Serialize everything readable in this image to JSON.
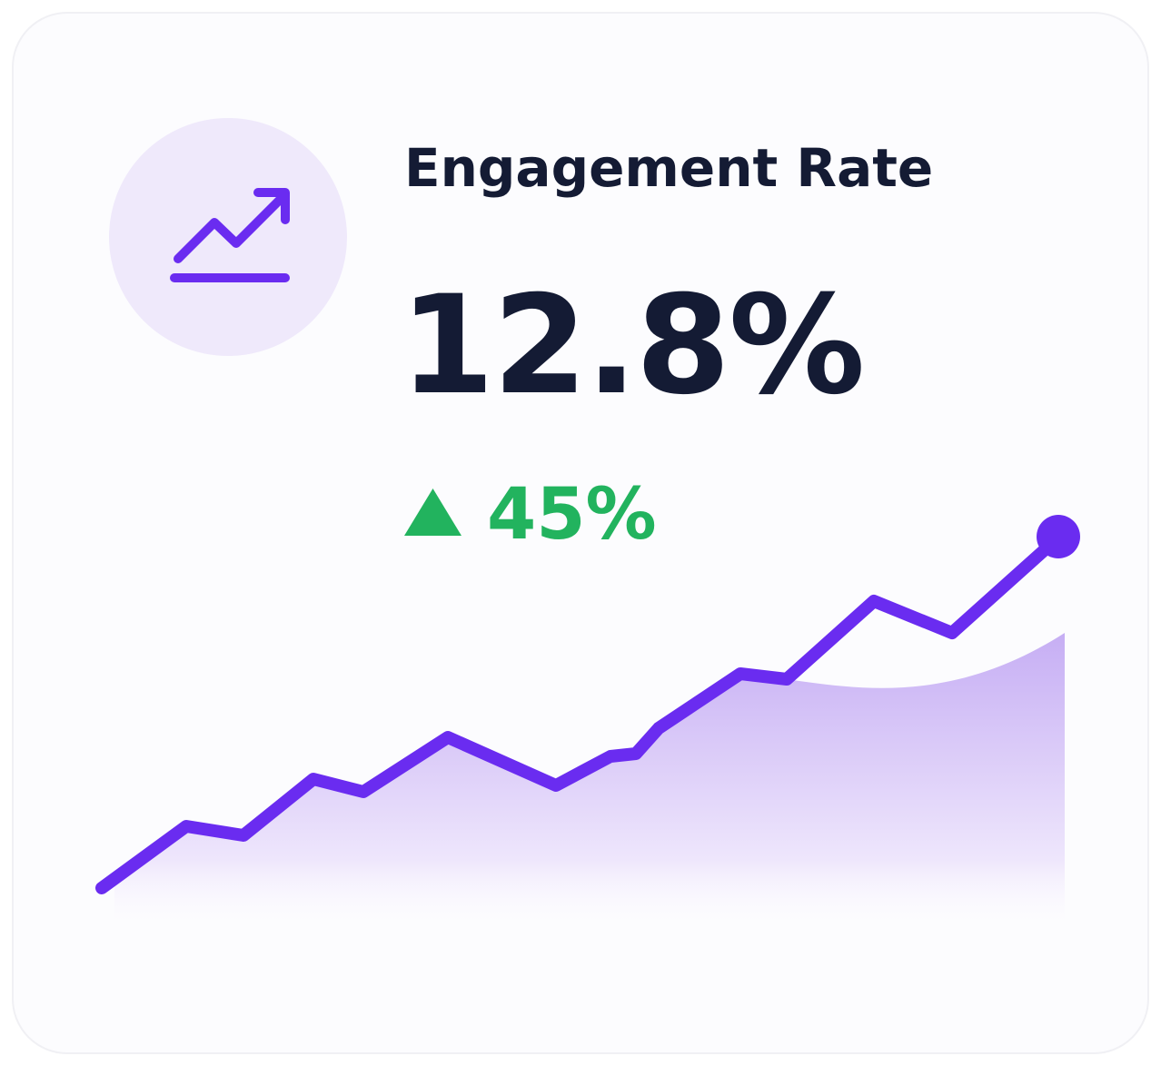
{
  "card": {
    "title": "Engagement Rate",
    "value": "12.8%",
    "change": "45%"
  }
}
